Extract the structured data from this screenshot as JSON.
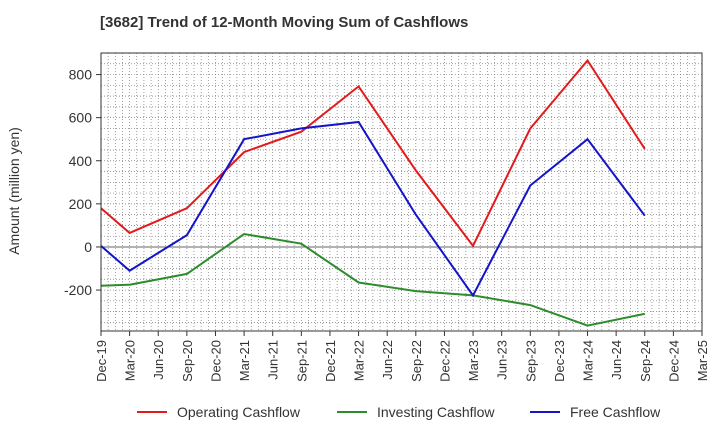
{
  "chart_data": {
    "type": "line",
    "title": "[3682]  Trend of 12-Month Moving Sum of Cashflows",
    "xlabel": "",
    "ylabel": "Amount (million yen)",
    "categories": [
      "Dec-19",
      "Mar-20",
      "Jun-20",
      "Sep-20",
      "Dec-20",
      "Mar-21",
      "Jun-21",
      "Sep-21",
      "Dec-21",
      "Mar-22",
      "Jun-22",
      "Sep-22",
      "Dec-22",
      "Mar-23",
      "Jun-23",
      "Sep-23",
      "Dec-23",
      "Mar-24",
      "Jun-24",
      "Sep-24",
      "Dec-24",
      "Mar-25"
    ],
    "yticks": [
      -200,
      0,
      200,
      400,
      600,
      800
    ],
    "ylim": [
      -390,
      900
    ],
    "grid": true,
    "legend_position": "bottom",
    "series": [
      {
        "name": "Operating Cashflow",
        "color": "#e31a1c",
        "values": [
          180,
          65,
          null,
          180,
          null,
          440,
          null,
          535,
          null,
          745,
          null,
          355,
          null,
          5,
          null,
          550,
          null,
          865,
          null,
          455,
          null,
          null
        ]
      },
      {
        "name": "Investing Cashflow",
        "color": "#2e8b2e",
        "values": [
          -180,
          -175,
          null,
          -125,
          null,
          60,
          null,
          15,
          null,
          -165,
          null,
          -205,
          null,
          -225,
          null,
          -270,
          null,
          -365,
          null,
          -310,
          null,
          null
        ]
      },
      {
        "name": "Free Cashflow",
        "color": "#1414c8",
        "values": [
          5,
          -110,
          null,
          55,
          null,
          500,
          null,
          550,
          null,
          580,
          null,
          150,
          null,
          -225,
          null,
          285,
          null,
          500,
          null,
          145,
          null,
          null
        ]
      }
    ]
  }
}
